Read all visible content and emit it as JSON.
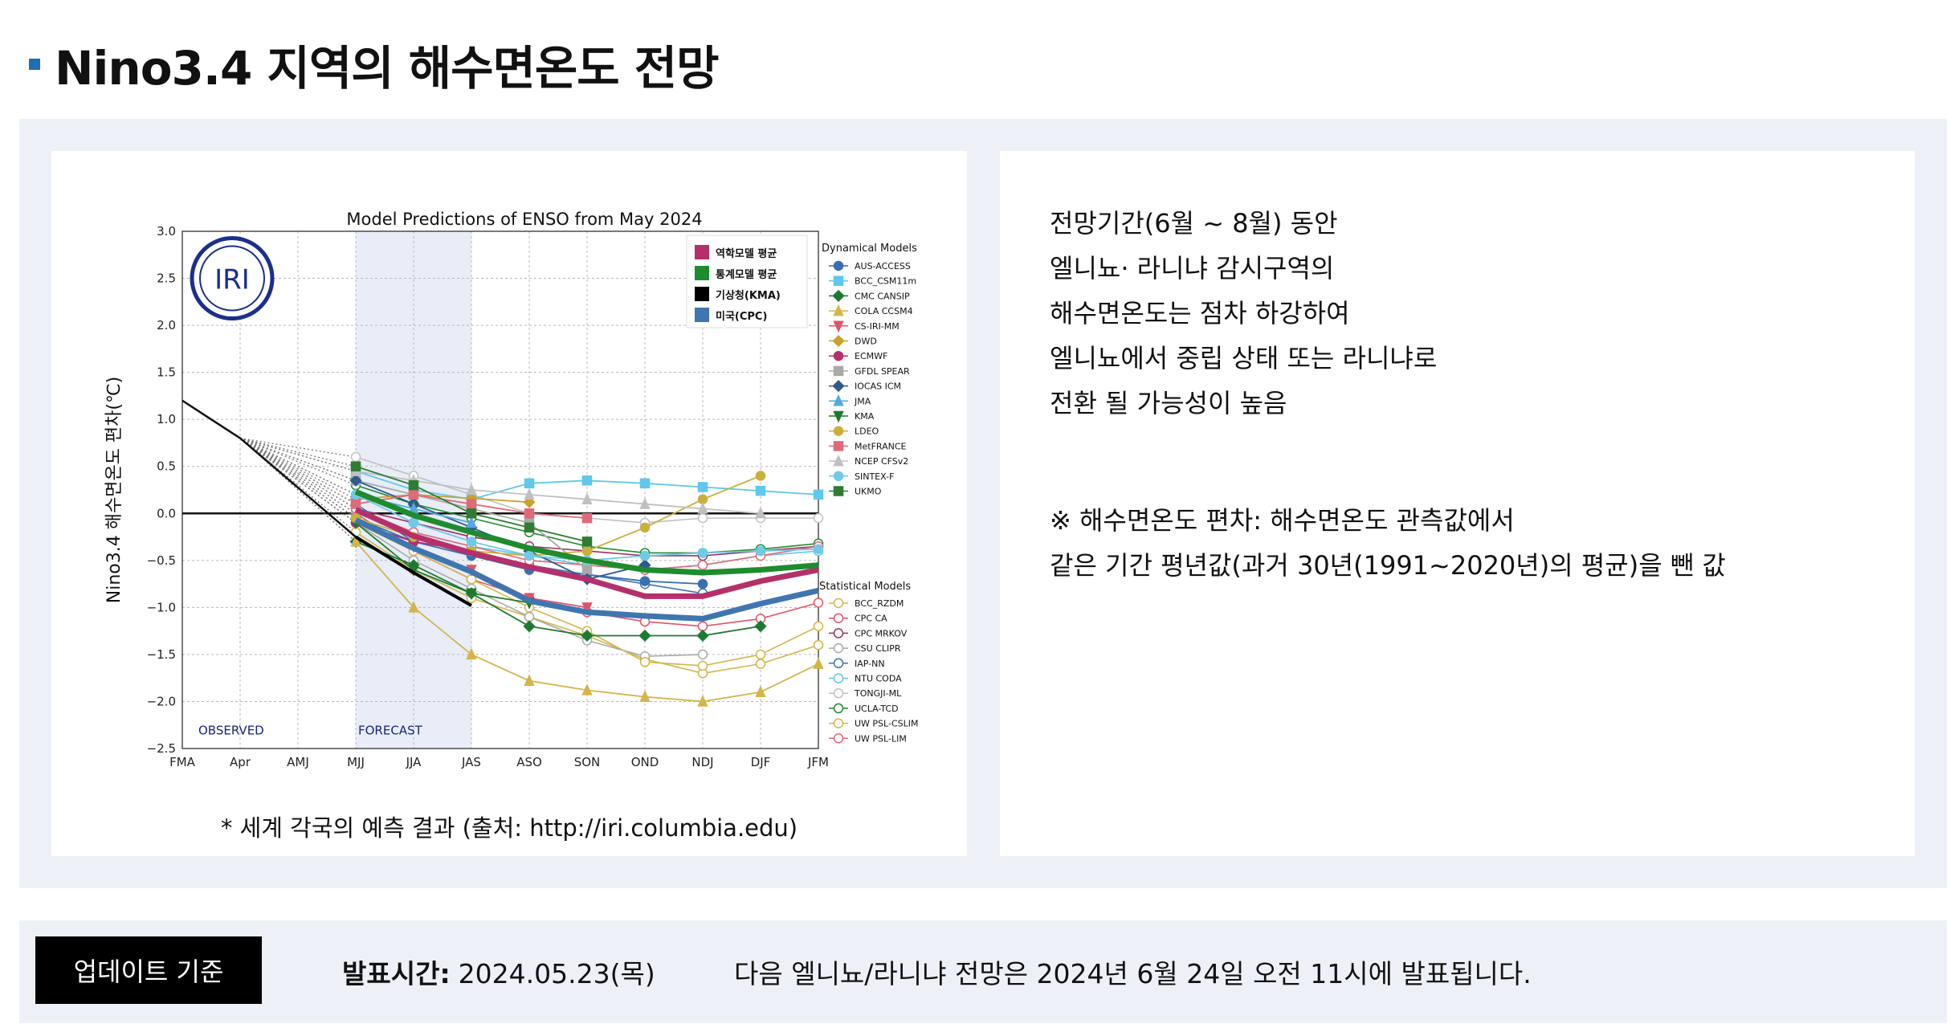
{
  "page": {
    "title": "Nino3.4 지역의 해수면온도 전망"
  },
  "description": {
    "lines": [
      "전망기간(6월 ~ 8월) 동안",
      "엘니뇨· 라니냐 감시구역의",
      "해수면온도는 점차 하강하여",
      "엘니뇨에서 중립 상태 또는 라니냐로",
      "전환 될 가능성이 높음"
    ],
    "note_lines": [
      "※ 해수면온도 편차: 해수면온도 관측값에서",
      "같은 기간 평년값(과거 30년(1991~2020년)의 평균)을 뺀 값"
    ]
  },
  "caption": "* 세계 각국의 예측 결과 (출처: http://iri.columbia.edu)",
  "footer": {
    "badge": "업데이트 기준",
    "pub_label": "발표시간:",
    "pub_value": "2024.05.23(목)",
    "next_notice": "다음 엘니뇨/라니냐 전망은 2024년 6월 24일 오전 11시에 발표됩니다."
  },
  "chart_data": {
    "type": "line",
    "title": "Model Predictions of ENSO from May 2024",
    "ylabel": "Nino3.4 해수면온도 편차(℃)",
    "xlabel": "",
    "categories": [
      "FMA",
      "Apr",
      "AMJ",
      "MJJ",
      "JJA",
      "JAS",
      "ASO",
      "SON",
      "OND",
      "NDJ",
      "DJF",
      "JFM"
    ],
    "ylim": [
      -2.5,
      3.0
    ],
    "yticks": [
      3.0,
      2.5,
      2.0,
      1.5,
      1.0,
      0.5,
      0.0,
      -0.5,
      -1.0,
      -1.5,
      -2.0,
      -2.5
    ],
    "ytick_labels": [
      "3.0",
      "2.5",
      "2.0",
      "1.5",
      "1.0",
      "0.5",
      "0.0",
      "−0.5",
      "−1.0",
      "−1.5",
      "−2.0",
      "−2.5"
    ],
    "grid": true,
    "logo_text": "IRI",
    "observed_label": "OBSERVED",
    "forecast_label": "FORECAST",
    "observed": {
      "x": [
        0,
        1
      ],
      "values": [
        1.2,
        0.8
      ]
    },
    "dynamical_title": "Dynamical Models",
    "statistical_title": "Statistical Models",
    "average_legend": [
      {
        "name": "역학모델 평균",
        "color": "#b5306b"
      },
      {
        "name": "통계모델 평균",
        "color": "#1e8c2e"
      },
      {
        "name": "기상청(KMA)",
        "color": "#000000"
      },
      {
        "name": "미국(CPC)",
        "color": "#3f76b0"
      }
    ],
    "averages": [
      {
        "name": "역학모델 평균",
        "color": "#b5306b",
        "values": [
          0.04,
          -0.24,
          -0.42,
          -0.57,
          -0.7,
          -0.88,
          -0.88,
          -0.72,
          -0.6
        ]
      },
      {
        "name": "통계모델 평균",
        "color": "#1e8c2e",
        "values": [
          0.23,
          -0.02,
          -0.2,
          -0.37,
          -0.5,
          -0.6,
          -0.63,
          -0.6,
          -0.55
        ]
      },
      {
        "name": "기상청(KMA)",
        "color": "#000000",
        "values": [
          -0.25,
          -0.63,
          -0.98
        ]
      },
      {
        "name": "미국(CPC)",
        "color": "#3f76b0",
        "values": [
          -0.07,
          -0.37,
          -0.62,
          -0.93,
          -1.05,
          -1.09,
          -1.12,
          -0.96,
          -0.82
        ]
      }
    ],
    "dynamical": [
      {
        "name": "AUS-ACCESS",
        "color": "#3b6fb4",
        "marker": "circle",
        "values": [
          -0.05,
          -0.3,
          -0.45,
          -0.6,
          -0.65,
          -0.72,
          -0.75
        ]
      },
      {
        "name": "BCC_CSM11m",
        "color": "#5fc8ec",
        "marker": "square",
        "values": [
          0.45,
          0.25,
          0.15,
          0.32,
          0.35,
          0.32,
          0.28,
          0.24,
          0.2
        ]
      },
      {
        "name": "CMC CANSIP",
        "color": "#1d7a33",
        "marker": "diamond",
        "values": [
          -0.3,
          -0.55,
          -0.85,
          -1.2,
          -1.3,
          -1.3,
          -1.3,
          -1.2
        ]
      },
      {
        "name": "COLA CCSM4",
        "color": "#d4b54b",
        "marker": "triangle-up",
        "values": [
          -0.3,
          -1.0,
          -1.5,
          -1.78,
          -1.88,
          -1.95,
          -2.0,
          -1.9,
          -1.6
        ]
      },
      {
        "name": "CS-IRI-MM",
        "color": "#e0546a",
        "marker": "triangle-down",
        "values": [
          -0.05,
          -0.35,
          -0.6,
          -0.9,
          -1.0
        ]
      },
      {
        "name": "DWD",
        "color": "#c9a22a",
        "marker": "diamond",
        "values": [
          0.15,
          0.2,
          0.16,
          0.12
        ]
      },
      {
        "name": "ECMWF",
        "color": "#b5306b",
        "marker": "circle",
        "values": [
          -0.1,
          -0.3,
          -0.4
        ]
      },
      {
        "name": "GFDL SPEAR",
        "color": "#a9a9a9",
        "marker": "square",
        "values": [
          0.35,
          0.2,
          0.05,
          -0.1,
          -0.6
        ]
      },
      {
        "name": "IOCAS ICM",
        "color": "#2f5a8c",
        "marker": "diamond",
        "values": [
          0.35,
          0.1,
          -0.15,
          -0.4,
          -0.7,
          -0.55
        ]
      },
      {
        "name": "JMA",
        "color": "#55a8e0",
        "marker": "triangle-up",
        "values": [
          0.2,
          0.05,
          -0.1
        ]
      },
      {
        "name": "KMA",
        "color": "#1e7a2a",
        "marker": "triangle-down",
        "values": [
          -0.1,
          -0.6,
          -0.85,
          -0.95
        ]
      },
      {
        "name": "LDEO",
        "color": "#c9b03c",
        "marker": "circle",
        "values": [
          -0.05,
          -0.25,
          -0.4,
          -0.45,
          -0.4,
          -0.15,
          0.15,
          0.4
        ]
      },
      {
        "name": "MetFRANCE",
        "color": "#e06a7a",
        "marker": "square",
        "values": [
          0.1,
          0.2,
          0.1,
          0.0,
          -0.05
        ]
      },
      {
        "name": "NCEP CFSv2",
        "color": "#c0c0c0",
        "marker": "triangle-up",
        "values": [
          0.45,
          0.35,
          0.25,
          0.2,
          0.15,
          0.1,
          0.05,
          0.0
        ]
      },
      {
        "name": "SINTEX-F",
        "color": "#6fcae8",
        "marker": "circle",
        "values": [
          0.2,
          -0.1,
          -0.3,
          -0.45,
          -0.5,
          -0.45,
          -0.42,
          -0.4,
          -0.38
        ]
      },
      {
        "name": "UKMO",
        "color": "#2e7d32",
        "marker": "square",
        "values": [
          0.5,
          0.3,
          0.0,
          -0.15,
          -0.3
        ]
      }
    ],
    "statistical": [
      {
        "name": "BCC_RZDM",
        "color": "#d4b54b",
        "values": [
          -0.2,
          -0.6,
          -0.9,
          -1.1,
          -1.3,
          -1.55,
          -1.7,
          -1.6,
          -1.4
        ]
      },
      {
        "name": "CPC CA",
        "color": "#e0546a",
        "values": [
          0.0,
          -0.4,
          -0.7,
          -0.9,
          -1.05,
          -1.15,
          -1.2,
          -1.12,
          -0.95
        ]
      },
      {
        "name": "CPC MRKOV",
        "color": "#a0305a",
        "values": [
          0.05,
          -0.1,
          -0.25,
          -0.35,
          -0.4,
          -0.45,
          -0.45,
          -0.4,
          -0.35
        ]
      },
      {
        "name": "CSU CLIPR",
        "color": "#a9a9a9",
        "values": [
          -0.1,
          -0.5,
          -0.8,
          -1.1,
          -1.35,
          -1.52,
          -1.5
        ]
      },
      {
        "name": "IAP-NN",
        "color": "#3f76b0",
        "values": [
          0.1,
          -0.3,
          -0.45,
          -0.55,
          -0.65,
          -0.75,
          -0.85
        ]
      },
      {
        "name": "NTU CODA",
        "color": "#5fc8ec",
        "values": [
          0.0,
          -0.2,
          -0.35,
          -0.45,
          -0.55,
          -0.6,
          -0.55,
          -0.45,
          -0.4
        ]
      },
      {
        "name": "TONGJI-ML",
        "color": "#c0c0c0",
        "values": [
          0.6,
          0.4,
          0.2,
          0.0,
          -0.05,
          -0.1,
          -0.05,
          -0.05,
          -0.05
        ]
      },
      {
        "name": "UCLA-TCD",
        "color": "#1e8c2e",
        "values": [
          0.3,
          0.1,
          -0.05,
          -0.2,
          -0.35,
          -0.42,
          -0.42,
          -0.38,
          -0.32
        ]
      },
      {
        "name": "UW PSL-CSLIM",
        "color": "#d4b54b",
        "values": [
          -0.1,
          -0.4,
          -0.7,
          -1.0,
          -1.25,
          -1.58,
          -1.62,
          -1.5,
          -1.2
        ]
      },
      {
        "name": "UW PSL-LIM",
        "color": "#e06a7a",
        "values": [
          0.05,
          -0.2,
          -0.35,
          -0.5,
          -0.55,
          -0.6,
          -0.55,
          -0.45,
          -0.35
        ]
      }
    ]
  }
}
